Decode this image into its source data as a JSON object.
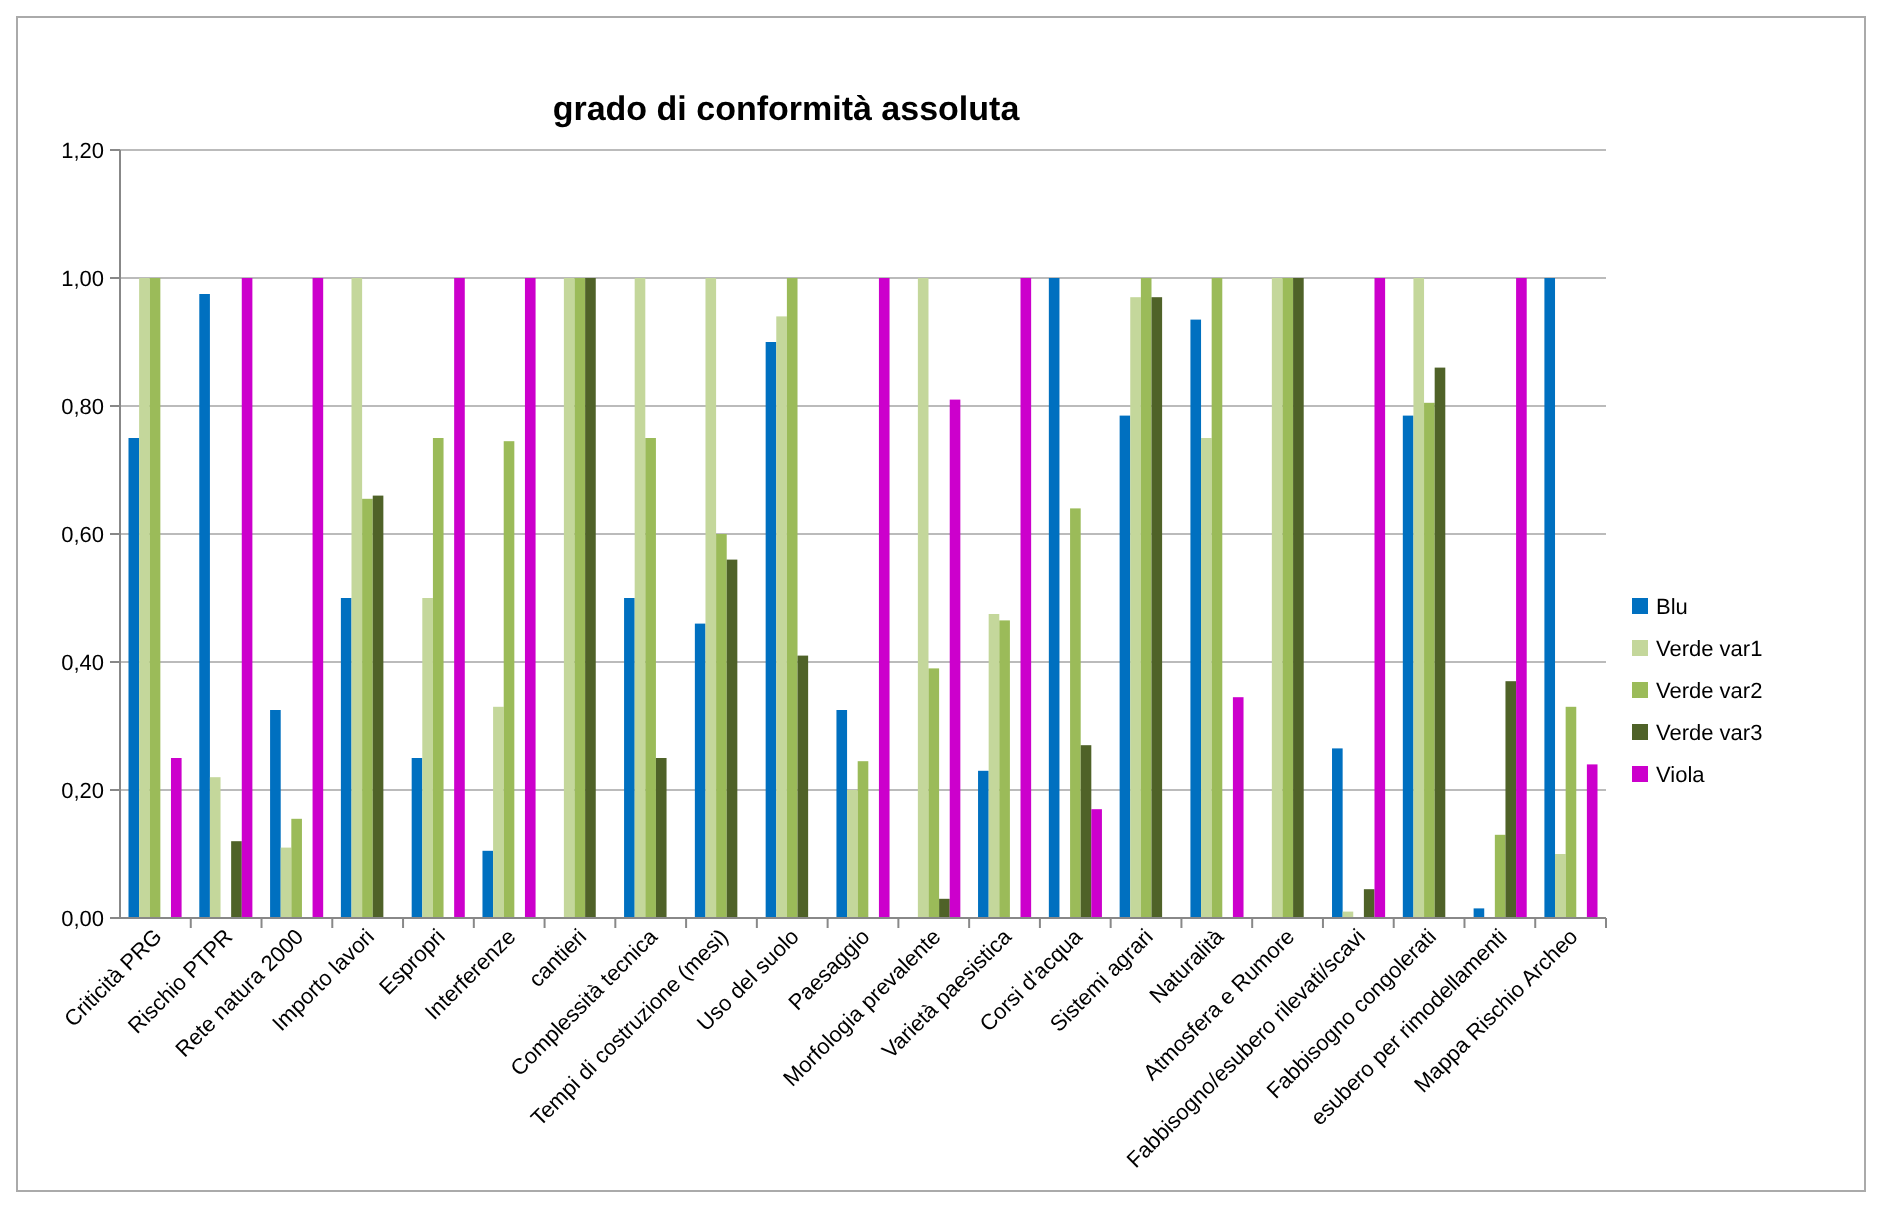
{
  "chart_data": {
    "type": "bar",
    "title": "grado di conformità assoluta",
    "categories": [
      "Criticità PRG",
      "Rischio PTPR",
      "Rete natura 2000",
      "Importo lavori",
      "Espropri",
      "Interferenze",
      "cantieri",
      "Complessità tecnica",
      "Tempi di costruzione (mesi)",
      "Uso del suolo",
      "Paesaggio",
      "Morfologia prevalente",
      "Varietà paesistica",
      "Corsi d'acqua",
      "Sistemi agrari",
      "Naturalità",
      "Atmosfera e Rumore",
      "Fabbisogno/esubero rilevati/scavi",
      "Fabbisogno congolerati",
      "esubero per rimodellamenti",
      "Mappa Rischio Archeo"
    ],
    "series": [
      {
        "name": "Blu",
        "color": "#0070c0",
        "values": [
          0.75,
          0.975,
          0.325,
          0.5,
          0.25,
          0.105,
          0,
          0.5,
          0.46,
          0.9,
          0.325,
          0,
          0.23,
          1.0,
          0.785,
          0.935,
          0,
          0.265,
          0.785,
          0.015,
          1.0
        ]
      },
      {
        "name": "Verde var1",
        "color": "#c4d79b",
        "values": [
          1.0,
          0.22,
          0.11,
          1.0,
          0.5,
          0.33,
          1.0,
          1.0,
          1.0,
          0.94,
          0.2,
          1.0,
          0.475,
          0,
          0.97,
          0.75,
          1.0,
          0.01,
          1.0,
          0,
          0.1
        ]
      },
      {
        "name": "Verde var2",
        "color": "#9bbb59",
        "values": [
          1.0,
          0,
          0.155,
          0.655,
          0.75,
          0.745,
          1.0,
          0.75,
          0.6,
          1.0,
          0.245,
          0.39,
          0.465,
          0.64,
          1.0,
          1.0,
          1.0,
          0,
          0.805,
          0.13,
          0.33
        ]
      },
      {
        "name": "Verde var3",
        "color": "#4f6228",
        "values": [
          0,
          0.12,
          0,
          0.66,
          0,
          0,
          1.0,
          0.25,
          0.56,
          0.41,
          0,
          0.03,
          0,
          0.27,
          0.97,
          0,
          1.0,
          0.045,
          0.86,
          0.37,
          0
        ]
      },
      {
        "name": "Viola",
        "color": "#cc00cc",
        "values": [
          0.25,
          1.0,
          1.0,
          0,
          1.0,
          1.0,
          0,
          0,
          0,
          0,
          1.0,
          0.81,
          1.0,
          0.17,
          0,
          0.345,
          0,
          1.0,
          0,
          1.0,
          0.24
        ]
      }
    ],
    "ylim": [
      0,
      1.2
    ],
    "yticks": [
      {
        "value": 0,
        "label": "0,00"
      },
      {
        "value": 0.2,
        "label": "0,20"
      },
      {
        "value": 0.4,
        "label": "0,40"
      },
      {
        "value": 0.6,
        "label": "0,60"
      },
      {
        "value": 0.8,
        "label": "0,80"
      },
      {
        "value": 1.0,
        "label": "1,00"
      },
      {
        "value": 1.2,
        "label": "1,20"
      }
    ],
    "grid": "y",
    "legend": "right"
  }
}
